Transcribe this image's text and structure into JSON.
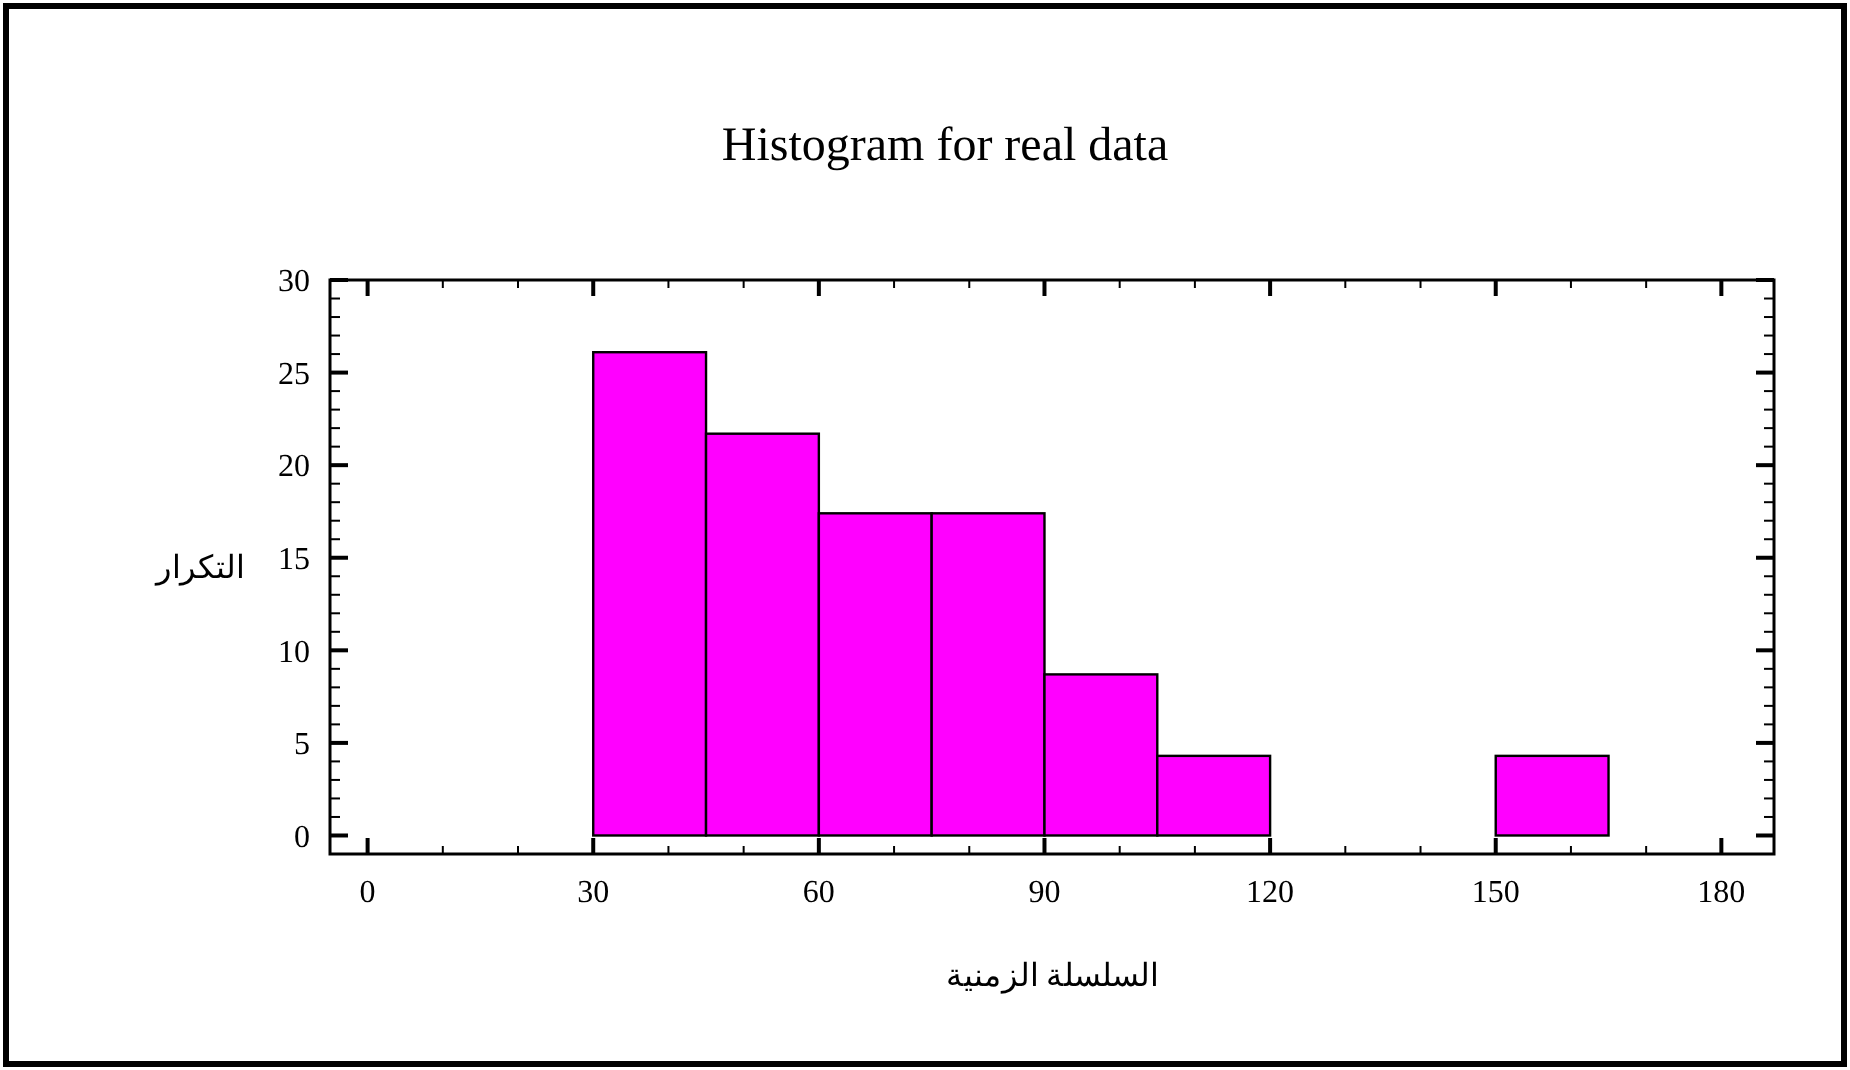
{
  "chart_data": {
    "type": "histogram",
    "title": "Histogram for real data",
    "xlabel": "السلسلة الزمنية",
    "ylabel": "التكرار",
    "bins": [
      30,
      45,
      60,
      75,
      90,
      105,
      120,
      135,
      150,
      165,
      180
    ],
    "values": [
      26.1,
      21.7,
      17.4,
      17.4,
      8.7,
      4.3,
      0,
      0,
      4.3,
      0
    ],
    "color": "#ff00ff",
    "xlim": [
      -5,
      187
    ],
    "xticks": [
      0,
      30,
      60,
      90,
      120,
      150,
      180
    ],
    "ylim": [
      -1,
      30
    ],
    "yticks": [
      0,
      5,
      10,
      15,
      20,
      25,
      30
    ],
    "grid": false
  }
}
